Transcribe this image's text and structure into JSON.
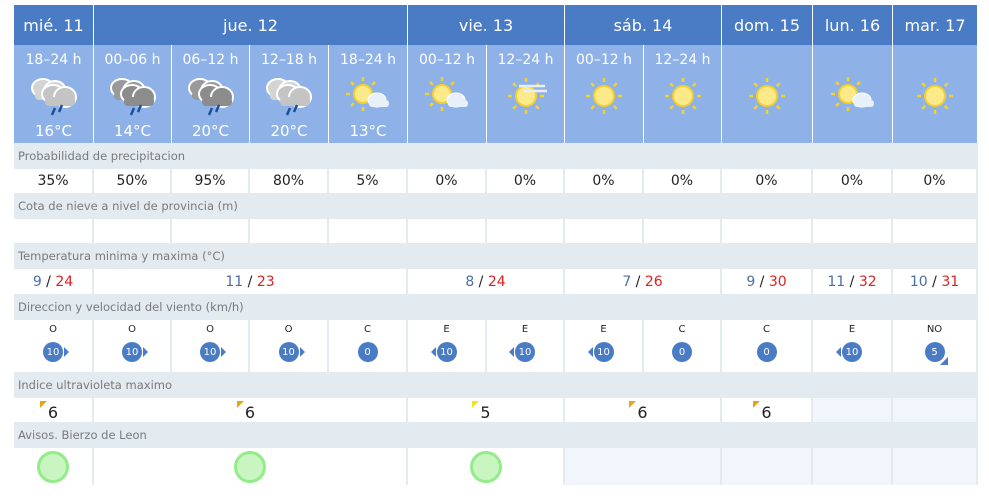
{
  "days": [
    {
      "label": "mié. 11"
    },
    {
      "label": "jue. 12"
    },
    {
      "label": "vie. 13"
    },
    {
      "label": "sáb. 14"
    },
    {
      "label": "dom. 15"
    },
    {
      "label": "lun. 16"
    },
    {
      "label": "mar. 17"
    }
  ],
  "periods": [
    {
      "label": "18–24 h",
      "icon": "cloud-rain-light-icon",
      "temp": "16°C"
    },
    {
      "label": "00–06 h",
      "icon": "cloud-rain-dark-icon",
      "temp": "14°C"
    },
    {
      "label": "06–12 h",
      "icon": "cloud-rain-dark-icon",
      "temp": "20°C"
    },
    {
      "label": "12–18 h",
      "icon": "cloud-rain-light-icon",
      "temp": "20°C"
    },
    {
      "label": "18–24 h",
      "icon": "sun-cloud-icon",
      "temp": "13°C"
    },
    {
      "label": "00–12 h",
      "icon": "sun-cloud-icon",
      "temp": ""
    },
    {
      "label": "12–24 h",
      "icon": "sun-haze-icon",
      "temp": ""
    },
    {
      "label": "00–12 h",
      "icon": "sun-icon",
      "temp": ""
    },
    {
      "label": "12–24 h",
      "icon": "sun-icon",
      "temp": ""
    },
    {
      "label": "",
      "icon": "sun-icon",
      "temp": ""
    },
    {
      "label": "",
      "icon": "sun-cloud-icon",
      "temp": ""
    },
    {
      "label": "",
      "icon": "sun-icon",
      "temp": ""
    }
  ],
  "sections": {
    "precip": "Probabilidad de precipitacion",
    "snow": "Cota de nieve a nivel de provincia (m)",
    "temp": "Temperatura minima y maxima (°C)",
    "wind": "Direccion y velocidad del viento (km/h)",
    "uv": "Indice ultravioleta maximo",
    "warnings": "Avisos. Bierzo de Leon"
  },
  "precip": [
    "35%",
    "50%",
    "95%",
    "80%",
    "5%",
    "0%",
    "0%",
    "0%",
    "0%",
    "0%",
    "0%",
    "0%"
  ],
  "temps": [
    {
      "min": "9",
      "max": "24"
    },
    {
      "min": "11",
      "max": "23"
    },
    {
      "min": "8",
      "max": "24"
    },
    {
      "min": "7",
      "max": "26"
    },
    {
      "min": "9",
      "max": "30"
    },
    {
      "min": "11",
      "max": "32"
    },
    {
      "min": "10",
      "max": "31"
    }
  ],
  "wind": [
    {
      "dir": "O",
      "speed": "10"
    },
    {
      "dir": "O",
      "speed": "10"
    },
    {
      "dir": "O",
      "speed": "10"
    },
    {
      "dir": "O",
      "speed": "10"
    },
    {
      "dir": "C",
      "speed": "0"
    },
    {
      "dir": "E",
      "speed": "10"
    },
    {
      "dir": "E",
      "speed": "10"
    },
    {
      "dir": "E",
      "speed": "10"
    },
    {
      "dir": "C",
      "speed": "0"
    },
    {
      "dir": "C",
      "speed": "0"
    },
    {
      "dir": "E",
      "speed": "10"
    },
    {
      "dir": "NO",
      "speed": "5"
    }
  ],
  "uv": [
    {
      "value": "6",
      "color": "#e8a317"
    },
    {
      "value": "6",
      "color": "#e8a317"
    },
    {
      "value": "5",
      "color": "#f5e31a"
    },
    {
      "value": "6",
      "color": "#e8a317"
    },
    {
      "value": "6",
      "color": "#e8a317"
    },
    {
      "value": "",
      "color": ""
    },
    {
      "value": "",
      "color": ""
    }
  ],
  "warnings": [
    {
      "level": "green",
      "color": "#93eb8a"
    },
    {
      "level": "green",
      "color": "#93eb8a"
    },
    {
      "level": "green",
      "color": "#93eb8a"
    },
    {
      "level": "",
      "color": ""
    },
    {
      "level": "",
      "color": ""
    },
    {
      "level": "",
      "color": ""
    },
    {
      "level": "",
      "color": ""
    }
  ],
  "colors": {
    "header": "#4a7cc6",
    "period": "#8eb2e8",
    "section": "#e3eaf0",
    "max": "#dd2222",
    "min": "#4a6fa5"
  }
}
